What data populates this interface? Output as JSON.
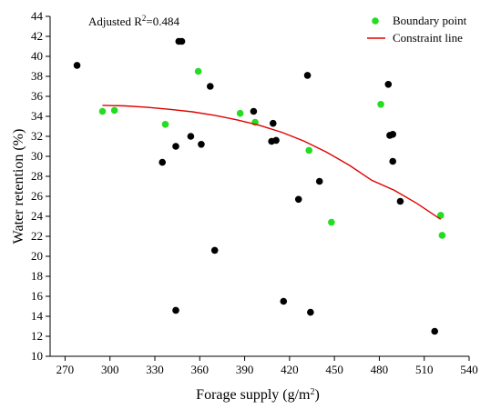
{
  "chart_data": {
    "type": "scatter",
    "annotation": {
      "prefix": "Adjusted R",
      "sup": "2",
      "suffix": "=0.484"
    },
    "xlabel": {
      "main": "Forage supply (g/m",
      "sup": "2",
      "end": ")"
    },
    "ylabel": "Water retention (%)",
    "xlim": [
      260,
      540
    ],
    "ylim": [
      10,
      44
    ],
    "xticks": [
      "270",
      "300",
      "330",
      "360",
      "390",
      "420",
      "450",
      "480",
      "510",
      "540"
    ],
    "yticks": [
      "10",
      "12",
      "14",
      "16",
      "18",
      "20",
      "22",
      "24",
      "26",
      "28",
      "30",
      "32",
      "34",
      "36",
      "38",
      "40",
      "42",
      "44"
    ],
    "grid": false,
    "legend_position": "top-right",
    "legend": {
      "boundary": "Boundary point",
      "constraint": "Constraint line"
    },
    "colors": {
      "boundary": "#22dd22",
      "other": "#000000",
      "constraint": "#e00000"
    },
    "series": [
      {
        "name": "Boundary point",
        "color": "#22dd22",
        "points": [
          [
            295,
            34.5
          ],
          [
            303,
            34.6
          ],
          [
            337,
            33.2
          ],
          [
            359,
            38.5
          ],
          [
            387,
            34.3
          ],
          [
            397,
            33.4
          ],
          [
            433,
            30.6
          ],
          [
            448,
            23.4
          ],
          [
            481,
            35.2
          ],
          [
            521,
            24.1
          ],
          [
            522,
            22.1
          ]
        ]
      },
      {
        "name": "",
        "color": "#000000",
        "points": [
          [
            278,
            39.1
          ],
          [
            335,
            29.4
          ],
          [
            344,
            31.0
          ],
          [
            344,
            14.6
          ],
          [
            346,
            41.5
          ],
          [
            348,
            41.5
          ],
          [
            354,
            32.0
          ],
          [
            361,
            31.2
          ],
          [
            367,
            37.0
          ],
          [
            370,
            20.6
          ],
          [
            396,
            34.5
          ],
          [
            408,
            31.5
          ],
          [
            409,
            33.3
          ],
          [
            411,
            31.6
          ],
          [
            416,
            15.5
          ],
          [
            426,
            25.7
          ],
          [
            432,
            38.1
          ],
          [
            434,
            14.4
          ],
          [
            440,
            27.5
          ],
          [
            486,
            37.2
          ],
          [
            487,
            32.1
          ],
          [
            489,
            32.2
          ],
          [
            489,
            29.5
          ],
          [
            494,
            25.5
          ],
          [
            517,
            12.5
          ]
        ]
      }
    ],
    "constraint_line": {
      "name": "Constraint line",
      "color": "#e00000",
      "x": [
        295,
        310,
        325,
        340,
        355,
        370,
        385,
        400,
        415,
        430,
        445,
        460,
        475,
        490,
        505,
        521
      ],
      "y": [
        35.1,
        35.05,
        34.9,
        34.7,
        34.45,
        34.1,
        33.65,
        33.1,
        32.4,
        31.5,
        30.4,
        29.1,
        27.6,
        26.6,
        25.3,
        23.7
      ]
    }
  }
}
